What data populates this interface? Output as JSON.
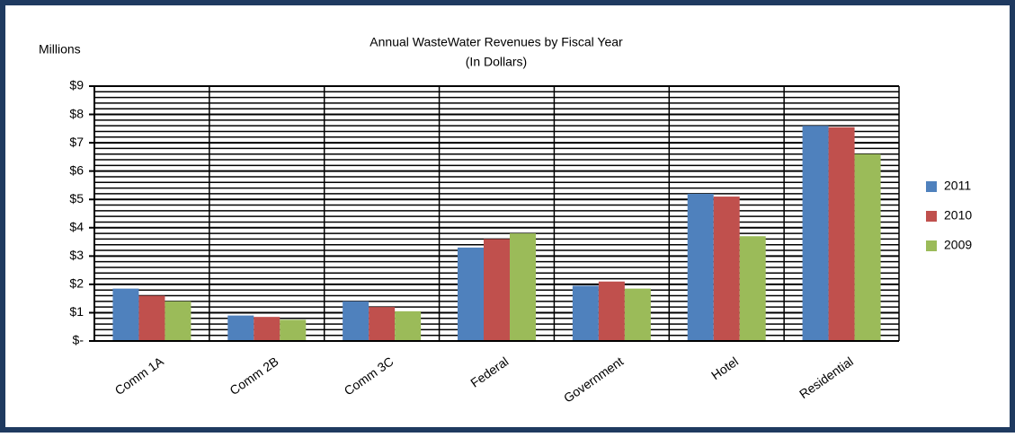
{
  "chart_data": {
    "type": "bar",
    "title": "Annual WasteWater Revenues by Fiscal Year",
    "subtitle": "(In Dollars)",
    "y_axis_label": "Millions",
    "categories": [
      "Comm 1A",
      "Comm 2B",
      "Comm 3C",
      "Federal",
      "Government",
      "Hotel",
      "Residential"
    ],
    "series": [
      {
        "name": "2011",
        "color": "#4f81bd",
        "values": [
          1.85,
          0.9,
          1.4,
          3.3,
          1.95,
          5.2,
          7.6
        ]
      },
      {
        "name": "2010",
        "color": "#c0504d",
        "values": [
          1.6,
          0.85,
          1.2,
          3.6,
          2.1,
          5.1,
          7.55
        ]
      },
      {
        "name": "2009",
        "color": "#9bbb59",
        "values": [
          1.4,
          0.75,
          1.05,
          3.8,
          1.85,
          3.7,
          6.6
        ]
      }
    ],
    "ylim": [
      0,
      9
    ],
    "yticks": [
      {
        "value": 0,
        "label": "$-"
      },
      {
        "value": 1,
        "label": "$1"
      },
      {
        "value": 2,
        "label": "$2"
      },
      {
        "value": 3,
        "label": "$3"
      },
      {
        "value": 4,
        "label": "$4"
      },
      {
        "value": 5,
        "label": "$5"
      },
      {
        "value": 6,
        "label": "$6"
      },
      {
        "value": 7,
        "label": "$7"
      },
      {
        "value": 8,
        "label": "$8"
      },
      {
        "value": 9,
        "label": "$9"
      }
    ],
    "grid": true,
    "legend": "right"
  }
}
